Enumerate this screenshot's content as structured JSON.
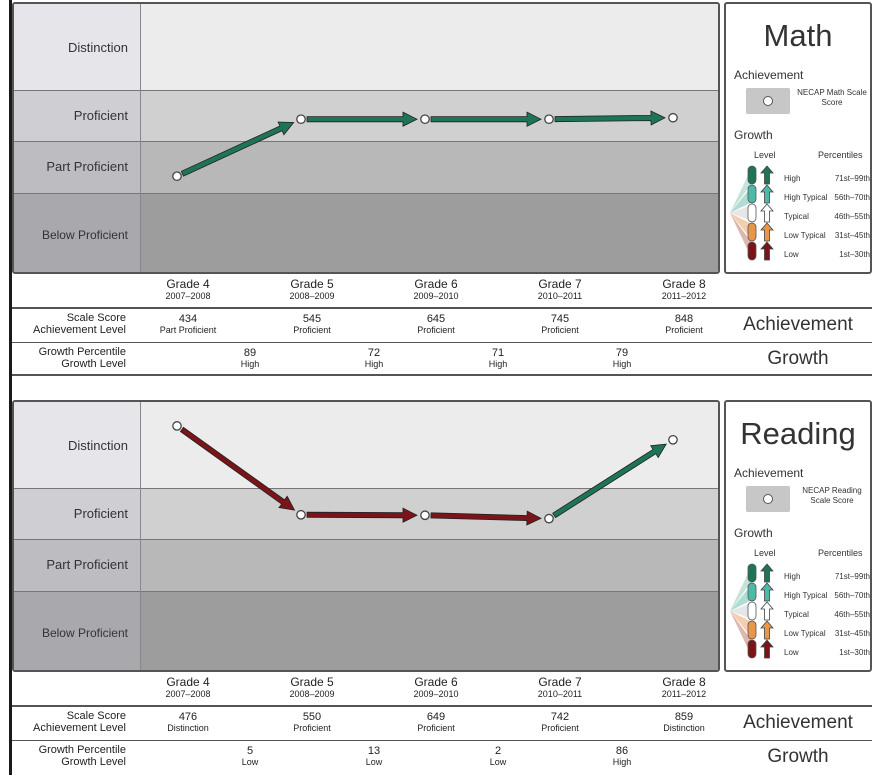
{
  "colors": {
    "up": "#1e7556",
    "down": "#7a1418",
    "band_top": "#ececec",
    "band_2": "#d0d0d0",
    "band_3": "#b8b8b8",
    "band_4": "#9d9d9d",
    "label_bg_top": "#e6e6ea",
    "label_bg_2": "#cfcfd3",
    "label_bg_3": "#bdbcc0",
    "label_bg_4": "#a9a8ad"
  },
  "row_labels": {
    "scale_score": "Scale Score",
    "achievement_level": "Achievement Level",
    "growth_percentile": "Growth Percentile",
    "growth_level": "Growth Level"
  },
  "side_labels": {
    "achievement": "Achievement",
    "growth": "Growth"
  },
  "bands": [
    "Distinction",
    "Proficient",
    "Part Proficient",
    "Below Proficient"
  ],
  "grades": [
    {
      "g": "Grade 4",
      "y": "2007–2008"
    },
    {
      "g": "Grade 5",
      "y": "2008–2009"
    },
    {
      "g": "Grade 6",
      "y": "2009–2010"
    },
    {
      "g": "Grade 7",
      "y": "2010–2011"
    },
    {
      "g": "Grade 8",
      "y": "2011–2012"
    }
  ],
  "legend_common": {
    "achievement": "Achievement",
    "growth": "Growth",
    "level": "Level",
    "percentiles": "Percentiles",
    "levels": [
      {
        "name": "High",
        "pct": "71st–99th",
        "color": "#1e7556"
      },
      {
        "name": "High Typical",
        "pct": "56th–70th",
        "color": "#4fb8a6"
      },
      {
        "name": "Typical",
        "pct": "46th–55th",
        "color": "#ffffff"
      },
      {
        "name": "Low Typical",
        "pct": "31st–45th",
        "color": "#e8974a"
      },
      {
        "name": "Low",
        "pct": "1st–30th",
        "color": "#7a1418"
      }
    ]
  },
  "panels": [
    {
      "subject": "Math",
      "legend_marker": "NECAP Math Scale Score",
      "scores": [
        "434",
        "545",
        "645",
        "745",
        "848"
      ],
      "ach_levels": [
        "Part Proficient",
        "Proficient",
        "Proficient",
        "Proficient",
        "Proficient"
      ],
      "growth_pct": [
        "89",
        "72",
        "71",
        "79"
      ],
      "growth_lvl": [
        "High",
        "High",
        "High",
        "High"
      ]
    },
    {
      "subject": "Reading",
      "legend_marker": "NECAP Reading Scale Score",
      "scores": [
        "476",
        "550",
        "649",
        "742",
        "859"
      ],
      "ach_levels": [
        "Distinction",
        "Proficient",
        "Proficient",
        "Proficient",
        "Distinction"
      ],
      "growth_pct": [
        "5",
        "13",
        "2",
        "86"
      ],
      "growth_lvl": [
        "Low",
        "Low",
        "Low",
        "High"
      ]
    }
  ],
  "chart_data": [
    {
      "type": "line",
      "title": "Math",
      "categories": [
        "Grade 4",
        "Grade 5",
        "Grade 6",
        "Grade 7",
        "Grade 8"
      ],
      "series": [
        {
          "values": [
            434,
            545,
            645,
            745,
            848
          ]
        }
      ],
      "growth_levels": [
        "High",
        "High",
        "High",
        "High"
      ],
      "y_bands": [
        "Below Proficient",
        "Part Proficient",
        "Proficient",
        "Distinction"
      ]
    },
    {
      "type": "line",
      "title": "Reading",
      "categories": [
        "Grade 4",
        "Grade 5",
        "Grade 6",
        "Grade 7",
        "Grade 8"
      ],
      "series": [
        {
          "values": [
            476,
            550,
            649,
            742,
            859
          ]
        }
      ],
      "growth_levels": [
        "Low",
        "Low",
        "Low",
        "High"
      ],
      "y_bands": [
        "Below Proficient",
        "Part Proficient",
        "Proficient",
        "Distinction"
      ]
    }
  ]
}
